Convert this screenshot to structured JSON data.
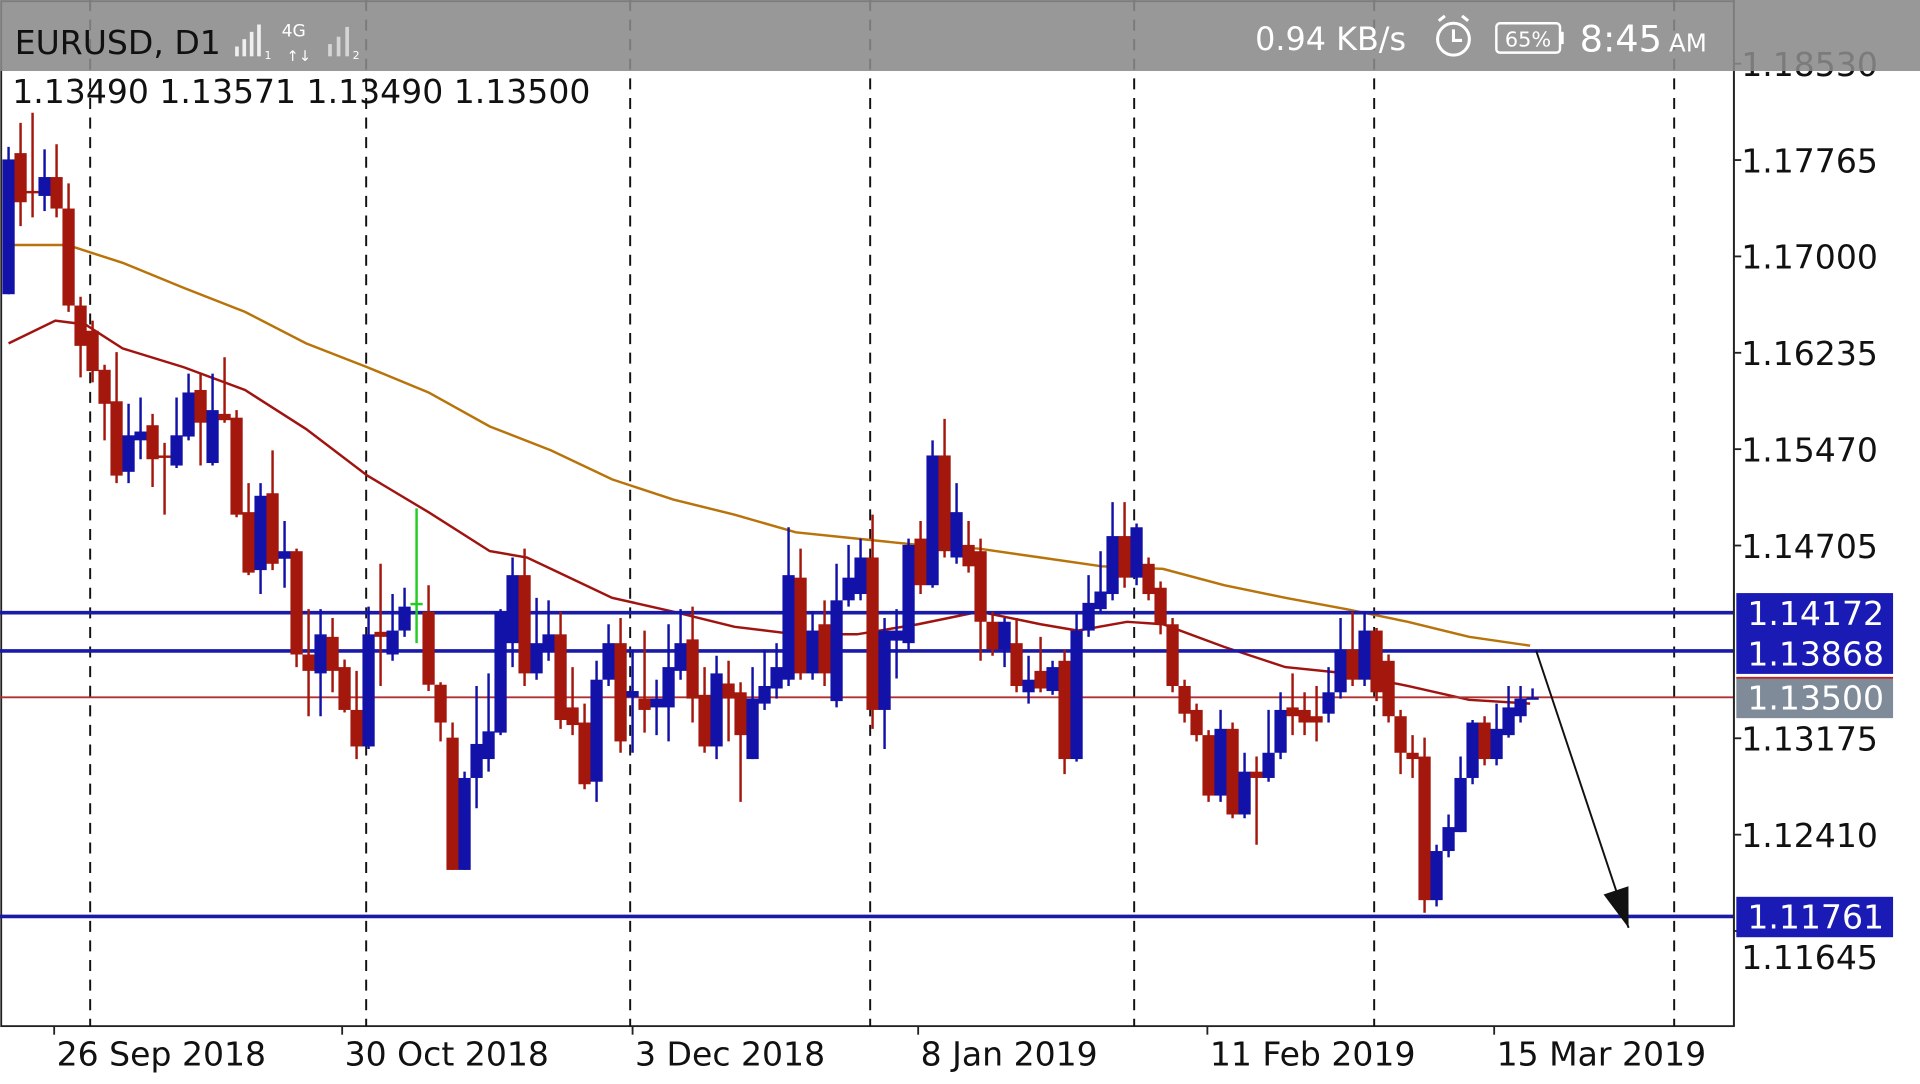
{
  "status_bar": {
    "network": "4G",
    "sim1": "1",
    "sim2": "2",
    "speed": "0.94 KB/s",
    "battery": "65%",
    "time": "8:45",
    "ampm": "AM",
    "alarm_icon": "alarm-clock-icon"
  },
  "chart_header": {
    "symbol": "EURUSD, D1",
    "ohlc": "1.13490 1.13571 1.13490 1.13500"
  },
  "colors": {
    "bull": "#1212a8",
    "bear": "#a3170c",
    "selected": "#22cc22",
    "ma_fast": "#a01410",
    "ma_slow": "#b8730a",
    "level_line": "#1a1aa8",
    "level_label": "#1a1ab4",
    "price_label": "#7f8b98"
  },
  "chart_data": {
    "type": "candlestick",
    "title": "EURUSD, D1",
    "ylim": [
      1.11,
      1.19
    ],
    "y_ticks": [
      "1.18530",
      "1.17765",
      "1.17000",
      "1.16235",
      "1.15470",
      "1.14705",
      "1.13175",
      "1.12410",
      "1.11645"
    ],
    "y_tick_values": [
      1.1853,
      1.17765,
      1.17,
      1.16235,
      1.1547,
      1.14705,
      1.13175,
      1.1241,
      1.11645
    ],
    "x_labels": [
      "26 Sep 2018",
      "30 Oct 2018",
      "3 Dec 2018",
      "8 Jan 2019",
      "11 Feb 2019",
      "15 Mar 2019"
    ],
    "x_label_candle_index": [
      3.8,
      27.8,
      52,
      75.8,
      99.9,
      123.8
    ],
    "separator_candle_index": [
      6.8,
      29.8,
      51.8,
      71.8,
      93.8,
      113.8,
      138.8
    ],
    "selected_candle_index": 34,
    "current_price": {
      "value": 1.135,
      "label": "1.13500"
    },
    "levels": [
      {
        "value": 1.14172,
        "label": "1.14172"
      },
      {
        "value": 1.13868,
        "label": "1.13868"
      },
      {
        "value": 1.11761,
        "label": "1.11761"
      }
    ],
    "arrow": {
      "from": [
        127.3,
        1.1387
      ],
      "to": [
        135,
        1.1167
      ]
    },
    "candles": [
      [
        1.167,
        1.1787,
        1.167,
        1.1777
      ],
      [
        1.1782,
        1.1806,
        1.1724,
        1.1743
      ],
      [
        1.1752,
        1.1814,
        1.1731,
        1.1751
      ],
      [
        1.1748,
        1.1785,
        1.1736,
        1.1763
      ],
      [
        1.1763,
        1.1789,
        1.1731,
        1.1738
      ],
      [
        1.1738,
        1.1758,
        1.1656,
        1.1661
      ],
      [
        1.1661,
        1.1668,
        1.1604,
        1.1629
      ],
      [
        1.1641,
        1.1649,
        1.16,
        1.1609
      ],
      [
        1.161,
        1.1614,
        1.1554,
        1.1583
      ],
      [
        1.1585,
        1.1624,
        1.152,
        1.1526
      ],
      [
        1.1529,
        1.1583,
        1.152,
        1.1558
      ],
      [
        1.1554,
        1.1588,
        1.1539,
        1.1561
      ],
      [
        1.1566,
        1.1575,
        1.1517,
        1.1539
      ],
      [
        1.1542,
        1.1552,
        1.1495,
        1.1541
      ],
      [
        1.1534,
        1.1588,
        1.1532,
        1.1558
      ],
      [
        1.1557,
        1.1607,
        1.1554,
        1.1592
      ],
      [
        1.1594,
        1.1607,
        1.1534,
        1.1568
      ],
      [
        1.1536,
        1.1607,
        1.1534,
        1.1578
      ],
      [
        1.1575,
        1.162,
        1.1568,
        1.157
      ],
      [
        1.1572,
        1.1578,
        1.1493,
        1.1495
      ],
      [
        1.1497,
        1.152,
        1.1447,
        1.1449
      ],
      [
        1.1451,
        1.152,
        1.1432,
        1.151
      ],
      [
        1.1512,
        1.1546,
        1.1451,
        1.1456
      ],
      [
        1.146,
        1.149,
        1.1437,
        1.1466
      ],
      [
        1.1466,
        1.1468,
        1.1374,
        1.1384
      ],
      [
        1.1384,
        1.142,
        1.1335,
        1.1371
      ],
      [
        1.1369,
        1.142,
        1.1335,
        1.14
      ],
      [
        1.1398,
        1.1413,
        1.1354,
        1.1371
      ],
      [
        1.1374,
        1.138,
        1.1338,
        1.134
      ],
      [
        1.134,
        1.1371,
        1.1301,
        1.1311
      ],
      [
        1.1311,
        1.1422,
        1.1309,
        1.14
      ],
      [
        1.1402,
        1.1456,
        1.1359,
        1.1398
      ],
      [
        1.1384,
        1.1432,
        1.1379,
        1.1403
      ],
      [
        1.1403,
        1.1437,
        1.1398,
        1.1422
      ],
      [
        1.1425,
        1.15,
        1.1393,
        1.1424
      ],
      [
        1.1418,
        1.1439,
        1.1355,
        1.136
      ],
      [
        1.136,
        1.1362,
        1.1315,
        1.133
      ],
      [
        1.1318,
        1.133,
        1.1213,
        1.1213
      ],
      [
        1.1213,
        1.1291,
        1.1213,
        1.1286
      ],
      [
        1.1286,
        1.1359,
        1.1262,
        1.1313
      ],
      [
        1.1301,
        1.1369,
        1.1291,
        1.1323
      ],
      [
        1.1322,
        1.142,
        1.132,
        1.1418
      ],
      [
        1.1393,
        1.1461,
        1.1374,
        1.1447
      ],
      [
        1.1447,
        1.1468,
        1.1359,
        1.1369
      ],
      [
        1.1369,
        1.1429,
        1.1364,
        1.1393
      ],
      [
        1.1386,
        1.1427,
        1.1379,
        1.14
      ],
      [
        1.14,
        1.1418,
        1.1325,
        1.1332
      ],
      [
        1.1342,
        1.1374,
        1.132,
        1.1328
      ],
      [
        1.133,
        1.1345,
        1.1277,
        1.1281
      ],
      [
        1.1283,
        1.1379,
        1.1267,
        1.1364
      ],
      [
        1.1364,
        1.1408,
        1.1359,
        1.1393
      ],
      [
        1.1393,
        1.1413,
        1.1306,
        1.1315
      ],
      [
        1.135,
        1.1388,
        1.1306,
        1.1355
      ],
      [
        1.1349,
        1.1403,
        1.1322,
        1.134
      ],
      [
        1.1342,
        1.1364,
        1.132,
        1.1349
      ],
      [
        1.1342,
        1.1408,
        1.1315,
        1.1374
      ],
      [
        1.1371,
        1.142,
        1.1364,
        1.1393
      ],
      [
        1.1396,
        1.1422,
        1.133,
        1.1349
      ],
      [
        1.1352,
        1.1374,
        1.1306,
        1.1311
      ],
      [
        1.1311,
        1.1383,
        1.1301,
        1.1369
      ],
      [
        1.1361,
        1.1379,
        1.1315,
        1.1349
      ],
      [
        1.1354,
        1.1362,
        1.1267,
        1.132
      ],
      [
        1.1301,
        1.1374,
        1.1301,
        1.1349
      ],
      [
        1.1345,
        1.1388,
        1.134,
        1.1359
      ],
      [
        1.1357,
        1.1393,
        1.1349,
        1.1374
      ],
      [
        1.1364,
        1.1485,
        1.1359,
        1.1447
      ],
      [
        1.1445,
        1.1468,
        1.1364,
        1.1369
      ],
      [
        1.1369,
        1.1418,
        1.1364,
        1.1403
      ],
      [
        1.1408,
        1.1427,
        1.1359,
        1.1369
      ],
      [
        1.1347,
        1.1456,
        1.1342,
        1.1427
      ],
      [
        1.1427,
        1.1471,
        1.1422,
        1.1445
      ],
      [
        1.1432,
        1.1476,
        1.1427,
        1.1461
      ],
      [
        1.1461,
        1.1495,
        1.1325,
        1.134
      ],
      [
        1.134,
        1.1413,
        1.1309,
        1.1403
      ],
      [
        1.1395,
        1.142,
        1.1365,
        1.1403
      ],
      [
        1.1393,
        1.1476,
        1.1388,
        1.1471
      ],
      [
        1.1476,
        1.149,
        1.1432,
        1.1439
      ],
      [
        1.1439,
        1.1554,
        1.1437,
        1.1542
      ],
      [
        1.1542,
        1.1571,
        1.1461,
        1.1466
      ],
      [
        1.1461,
        1.152,
        1.1456,
        1.1497
      ],
      [
        1.1471,
        1.149,
        1.1449,
        1.1454
      ],
      [
        1.1466,
        1.1476,
        1.1379,
        1.141
      ],
      [
        1.141,
        1.1418,
        1.1383,
        1.1388
      ],
      [
        1.1388,
        1.1413,
        1.1374,
        1.141
      ],
      [
        1.1393,
        1.1413,
        1.1354,
        1.1359
      ],
      [
        1.1354,
        1.1383,
        1.1345,
        1.1364
      ],
      [
        1.1371,
        1.1398,
        1.1354,
        1.1357
      ],
      [
        1.1355,
        1.1379,
        1.1352,
        1.1374
      ],
      [
        1.1379,
        1.1388,
        1.1289,
        1.1301
      ],
      [
        1.1301,
        1.1418,
        1.1299,
        1.1403
      ],
      [
        1.1403,
        1.1447,
        1.1398,
        1.1425
      ],
      [
        1.142,
        1.1466,
        1.1418,
        1.1434
      ],
      [
        1.1432,
        1.1505,
        1.1427,
        1.1478
      ],
      [
        1.1478,
        1.1505,
        1.1437,
        1.1445
      ],
      [
        1.1445,
        1.1488,
        1.1439,
        1.1485
      ],
      [
        1.1456,
        1.1461,
        1.1427,
        1.1432
      ],
      [
        1.1437,
        1.1442,
        1.14,
        1.1408
      ],
      [
        1.1408,
        1.1413,
        1.1354,
        1.1359
      ],
      [
        1.1359,
        1.1364,
        1.133,
        1.1337
      ],
      [
        1.134,
        1.1345,
        1.1315,
        1.132
      ],
      [
        1.132,
        1.1324,
        1.1267,
        1.1272
      ],
      [
        1.1272,
        1.134,
        1.1267,
        1.1325
      ],
      [
        1.1325,
        1.133,
        1.1254,
        1.1257
      ],
      [
        1.1257,
        1.1306,
        1.1254,
        1.1291
      ],
      [
        1.1291,
        1.1303,
        1.1233,
        1.1286
      ],
      [
        1.1286,
        1.134,
        1.1283,
        1.1306
      ],
      [
        1.1306,
        1.1354,
        1.1301,
        1.134
      ],
      [
        1.1342,
        1.1369,
        1.132,
        1.1335
      ],
      [
        1.134,
        1.1354,
        1.132,
        1.133
      ],
      [
        1.1335,
        1.1359,
        1.1315,
        1.133
      ],
      [
        1.1337,
        1.1374,
        1.133,
        1.1354
      ],
      [
        1.1354,
        1.1413,
        1.1349,
        1.1388
      ],
      [
        1.1388,
        1.1418,
        1.1359,
        1.1364
      ],
      [
        1.1364,
        1.1418,
        1.1359,
        1.1403
      ],
      [
        1.1403,
        1.1405,
        1.1347,
        1.1354
      ],
      [
        1.1379,
        1.1384,
        1.133,
        1.1335
      ],
      [
        1.1335,
        1.134,
        1.1289,
        1.1306
      ],
      [
        1.1306,
        1.132,
        1.1286,
        1.1301
      ],
      [
        1.1303,
        1.1318,
        1.1179,
        1.1189
      ],
      [
        1.1189,
        1.1233,
        1.1184,
        1.1228
      ],
      [
        1.1228,
        1.1257,
        1.1223,
        1.1247
      ],
      [
        1.1243,
        1.1303,
        1.1243,
        1.1286
      ],
      [
        1.1286,
        1.1332,
        1.1281,
        1.133
      ],
      [
        1.133,
        1.1335,
        1.1296,
        1.1301
      ],
      [
        1.1301,
        1.1345,
        1.1296,
        1.1325
      ],
      [
        1.132,
        1.1359,
        1.1318,
        1.1342
      ],
      [
        1.1335,
        1.1359,
        1.133,
        1.1349
      ],
      [
        1.1349,
        1.13571,
        1.1349,
        1.135
      ]
    ],
    "ma_slow": [
      [
        0,
        1.1709
      ],
      [
        4.9,
        1.1709
      ],
      [
        9.5,
        1.1695
      ],
      [
        14.6,
        1.1675
      ],
      [
        19.7,
        1.1656
      ],
      [
        24.8,
        1.1631
      ],
      [
        29.9,
        1.1612
      ],
      [
        35,
        1.1592
      ],
      [
        40.1,
        1.1565
      ],
      [
        45.2,
        1.1546
      ],
      [
        50.3,
        1.1523
      ],
      [
        55.4,
        1.1507
      ],
      [
        60.5,
        1.1495
      ],
      [
        65.6,
        1.1481
      ],
      [
        70.7,
        1.1476
      ],
      [
        75.8,
        1.1471
      ],
      [
        80.9,
        1.1468
      ],
      [
        86,
        1.1461
      ],
      [
        91.1,
        1.1454
      ],
      [
        96.2,
        1.1452
      ],
      [
        101.3,
        1.1439
      ],
      [
        106.4,
        1.1429
      ],
      [
        111.5,
        1.142
      ],
      [
        116.6,
        1.141
      ],
      [
        121.7,
        1.1398
      ],
      [
        126.8,
        1.1391
      ]
    ],
    "ma_fast": [
      [
        0,
        1.1631
      ],
      [
        3.9,
        1.1649
      ],
      [
        6.4,
        1.1646
      ],
      [
        9.5,
        1.1627
      ],
      [
        14.6,
        1.1612
      ],
      [
        19.7,
        1.1594
      ],
      [
        24.8,
        1.1563
      ],
      [
        29.9,
        1.1526
      ],
      [
        35,
        1.1497
      ],
      [
        40.1,
        1.1466
      ],
      [
        43.2,
        1.1461
      ],
      [
        45.2,
        1.1452
      ],
      [
        50.3,
        1.1429
      ],
      [
        55.4,
        1.1418
      ],
      [
        60.5,
        1.1406
      ],
      [
        65.6,
        1.14
      ],
      [
        70.7,
        1.14
      ],
      [
        75.8,
        1.1408
      ],
      [
        80.9,
        1.1418
      ],
      [
        86,
        1.1408
      ],
      [
        89.1,
        1.1403
      ],
      [
        93.2,
        1.141
      ],
      [
        96.2,
        1.1408
      ],
      [
        101.3,
        1.139
      ],
      [
        106.4,
        1.1374
      ],
      [
        111.5,
        1.1369
      ],
      [
        116.6,
        1.1359
      ],
      [
        121.7,
        1.1348
      ],
      [
        126.8,
        1.1345
      ]
    ]
  }
}
